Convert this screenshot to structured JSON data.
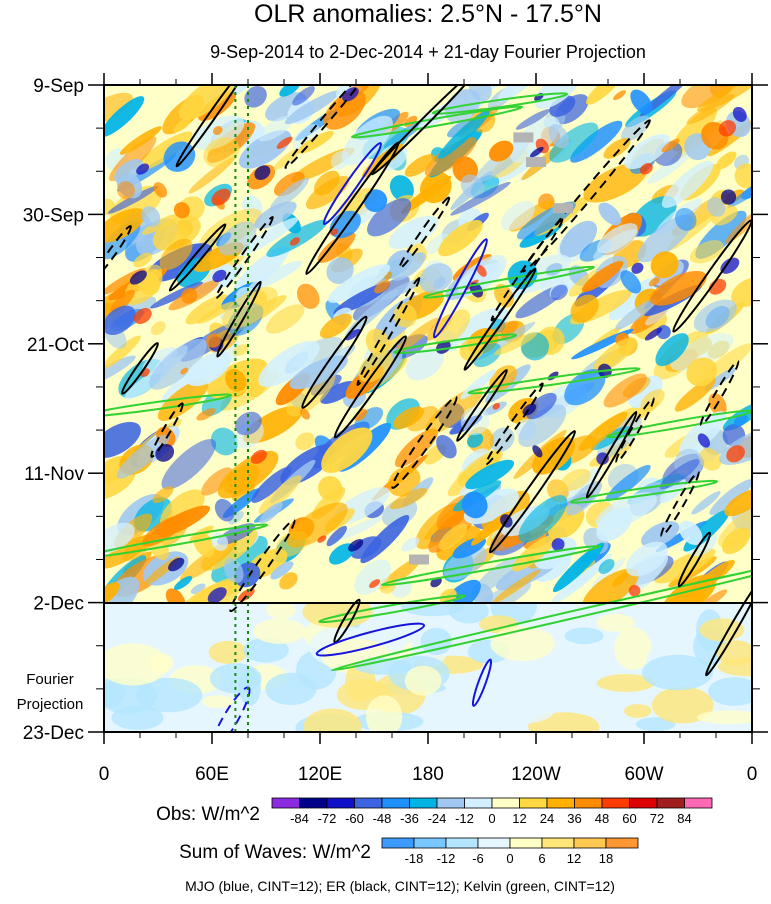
{
  "chart_data": {
    "type": "heatmap",
    "title": "OLR anomalies: 2.5°N - 17.5°N",
    "subtitle": "9-Sep-2014 to 2-Dec-2014 + 21-day Fourier Projection",
    "x_ticks": [
      "0",
      "60E",
      "120E",
      "180",
      "120W",
      "60W",
      "0"
    ],
    "x_tick_lons": [
      0,
      60,
      120,
      180,
      240,
      300,
      360
    ],
    "y_ticks": [
      "9-Sep",
      "30-Sep",
      "21-Oct",
      "11-Nov",
      "2-Dec",
      "23-Dec"
    ],
    "y_tick_days": [
      0,
      21,
      42,
      63,
      84,
      105
    ],
    "projection_label_lines": [
      "Fourier",
      "Projection"
    ],
    "obs_start_day": 0,
    "obs_end_day": 84,
    "projection_end_day": 105,
    "reference_lines_lon": [
      73,
      80
    ],
    "obs_legend": {
      "label": "Obs: W/m^2",
      "levels": [
        "-84",
        "-72",
        "-60",
        "-48",
        "-36",
        "-24",
        "-12",
        "0",
        "12",
        "24",
        "36",
        "48",
        "60",
        "72",
        "84"
      ],
      "colors": [
        "#8a2be2",
        "#00008b",
        "#1010c8",
        "#3c64e0",
        "#1e90ff",
        "#00b4e6",
        "#a0c8f0",
        "#d2f0ff",
        "#ffffc8",
        "#ffd740",
        "#ffb000",
        "#ff8c00",
        "#ff3c00",
        "#dc0000",
        "#a01e1e",
        "#ff69b4"
      ]
    },
    "waves_legend": {
      "label": "Sum of Waves: W/m^2",
      "levels": [
        "-18",
        "-12",
        "-6",
        "0",
        "6",
        "12",
        "18"
      ],
      "colors": [
        "#3c9bff",
        "#78c8ff",
        "#b4e6ff",
        "#e6f6ff",
        "#ffffc8",
        "#ffe678",
        "#ffc850",
        "#ff9632"
      ]
    },
    "footer": "MJO (blue, CINT=12); ER (black, CINT=12); Kelvin (green, CINT=12)",
    "contour_colors": {
      "mjo": "#1414dc",
      "er": "#000000",
      "kelvin": "#32d232"
    },
    "mjo_contours": [
      {
        "lon": 138,
        "day": 16,
        "len": 8,
        "rot": 55,
        "w": 3
      },
      {
        "lon": 198,
        "day": 33,
        "len": 9,
        "rot": 62,
        "w": 3
      },
      {
        "lon": 148,
        "day": 90,
        "len": 9,
        "rot": 15,
        "w": 4
      },
      {
        "lon": 210,
        "day": 97,
        "len": 4,
        "rot": 70,
        "w": 2
      }
    ],
    "mjo_dashed": [
      {
        "lon": 70,
        "day": 103,
        "len": 6,
        "rot": 60,
        "w": 4
      }
    ],
    "er_solid": [
      {
        "lon": 60,
        "day": 5,
        "len": 10,
        "rot": 55,
        "w": 2
      },
      {
        "lon": 52,
        "day": 28,
        "len": 7,
        "rot": 50,
        "w": 2
      },
      {
        "lon": 75,
        "day": 38,
        "len": 7,
        "rot": 60,
        "w": 2
      },
      {
        "lon": 138,
        "day": 20,
        "len": 13,
        "rot": 55,
        "w": 3
      },
      {
        "lon": 128,
        "day": 45,
        "len": 9,
        "rot": 55,
        "w": 3
      },
      {
        "lon": 148,
        "day": 49,
        "len": 10,
        "rot": 55,
        "w": 3
      },
      {
        "lon": 178,
        "day": 6,
        "len": 12,
        "rot": 45,
        "w": 2
      },
      {
        "lon": 220,
        "day": 38,
        "len": 10,
        "rot": 55,
        "w": 2
      },
      {
        "lon": 238,
        "day": 66,
        "len": 12,
        "rot": 55,
        "w": 3
      },
      {
        "lon": 210,
        "day": 52,
        "len": 7,
        "rot": 55,
        "w": 2
      },
      {
        "lon": 338,
        "day": 31,
        "len": 11,
        "rot": 55,
        "w": 3
      },
      {
        "lon": 350,
        "day": 88,
        "len": 9,
        "rot": 60,
        "w": 2
      },
      {
        "lon": 20,
        "day": 46,
        "len": 5,
        "rot": 55,
        "w": 2
      },
      {
        "lon": 135,
        "day": 87,
        "len": 4,
        "rot": 60,
        "w": 2
      },
      {
        "lon": 282,
        "day": 60,
        "len": 8,
        "rot": 60,
        "w": 2
      },
      {
        "lon": 328,
        "day": 77,
        "len": 5,
        "rot": 60,
        "w": 2
      }
    ],
    "er_dashed": [
      {
        "lon": 125,
        "day": 5,
        "len": 11,
        "rot": 50,
        "w": 2
      },
      {
        "lon": 78,
        "day": 28,
        "len": 8,
        "rot": 55,
        "w": 2
      },
      {
        "lon": 158,
        "day": 40,
        "len": 10,
        "rot": 60,
        "w": 2
      },
      {
        "lon": 178,
        "day": 24,
        "len": 7,
        "rot": 55,
        "w": 2
      },
      {
        "lon": 268,
        "day": 18,
        "len": 16,
        "rot": 50,
        "w": 3
      },
      {
        "lon": 235,
        "day": 30,
        "len": 10,
        "rot": 55,
        "w": 2
      },
      {
        "lon": 228,
        "day": 55,
        "len": 8,
        "rot": 55,
        "w": 2
      },
      {
        "lon": 178,
        "day": 58,
        "len": 9,
        "rot": 55,
        "w": 3
      },
      {
        "lon": 88,
        "day": 78,
        "len": 9,
        "rot": 55,
        "w": 3
      },
      {
        "lon": 35,
        "day": 56,
        "len": 5,
        "rot": 60,
        "w": 2
      },
      {
        "lon": 295,
        "day": 56,
        "len": 6,
        "rot": 60,
        "w": 2
      },
      {
        "lon": 342,
        "day": 50,
        "len": 6,
        "rot": 60,
        "w": 2
      },
      {
        "lon": 320,
        "day": 68,
        "len": 6,
        "rot": 60,
        "w": 2
      },
      {
        "lon": 5,
        "day": 27,
        "len": 5,
        "rot": 55,
        "w": 2
      }
    ],
    "kelvin_contours": [
      {
        "lon": 260,
        "day": 86,
        "len": 40,
        "rot": 13,
        "w": 2
      },
      {
        "lon": 215,
        "day": 78,
        "len": 18,
        "rot": 10,
        "w": 2
      },
      {
        "lon": 225,
        "day": 32,
        "len": 14,
        "rot": 10,
        "w": 2
      },
      {
        "lon": 185,
        "day": 6,
        "len": 14,
        "rot": 10,
        "w": 2
      },
      {
        "lon": 220,
        "day": 3,
        "len": 11,
        "rot": 8,
        "w": 2
      },
      {
        "lon": 320,
        "day": 55,
        "len": 12,
        "rot": 10,
        "w": 2
      },
      {
        "lon": 30,
        "day": 52,
        "len": 12,
        "rot": 8,
        "w": 2
      },
      {
        "lon": 40,
        "day": 74,
        "len": 15,
        "rot": 10,
        "w": 2
      },
      {
        "lon": 250,
        "day": 48,
        "len": 14,
        "rot": 8,
        "w": 2
      },
      {
        "lon": 300,
        "day": 66,
        "len": 12,
        "rot": 8,
        "w": 2
      },
      {
        "lon": 160,
        "day": 85,
        "len": 12,
        "rot": 10,
        "w": 2
      },
      {
        "lon": 195,
        "day": 42,
        "len": 10,
        "rot": 8,
        "w": 2
      }
    ],
    "missing_patches": [
      {
        "lon": 233,
        "day": 8.5
      },
      {
        "lon": 255,
        "day": 20
      },
      {
        "lon": 240,
        "day": 12.5
      },
      {
        "lon": 175,
        "day": 77
      }
    ]
  }
}
